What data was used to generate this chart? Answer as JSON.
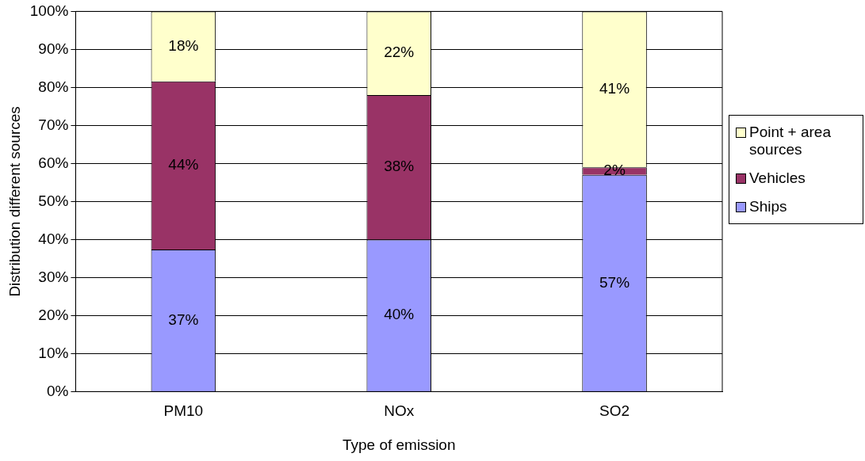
{
  "chart_data": {
    "type": "bar",
    "stacked": true,
    "xlabel": "Type of emission",
    "ylabel": "Distribution different sources",
    "categories": [
      "PM10",
      "NOx",
      "SO2"
    ],
    "series": [
      {
        "name": "Ships",
        "color": "#9999ff",
        "values": [
          37.4,
          40,
          57
        ],
        "value_labels": [
          "37%",
          "40%",
          "57%"
        ]
      },
      {
        "name": "Vehicles",
        "color": "#993366",
        "values": [
          44.2,
          38,
          2
        ],
        "value_labels": [
          "44%",
          "38%",
          "2%"
        ]
      },
      {
        "name": "Point + area sources",
        "color": "#ffffcc",
        "values": [
          18.4,
          22,
          41
        ],
        "value_labels": [
          "18%",
          "22%",
          "41%"
        ]
      }
    ],
    "ylim": [
      0,
      100
    ],
    "yticks": [
      {
        "value": 0,
        "label": "0%"
      },
      {
        "value": 10,
        "label": "10%"
      },
      {
        "value": 20,
        "label": "20%"
      },
      {
        "value": 30,
        "label": "30%"
      },
      {
        "value": 40,
        "label": "40%"
      },
      {
        "value": 50,
        "label": "50%"
      },
      {
        "value": 60,
        "label": "60%"
      },
      {
        "value": 70,
        "label": "70%"
      },
      {
        "value": 80,
        "label": "80%"
      },
      {
        "value": 90,
        "label": "90%"
      },
      {
        "value": 100,
        "label": "100%"
      }
    ],
    "grid": "y",
    "legend": "right"
  }
}
